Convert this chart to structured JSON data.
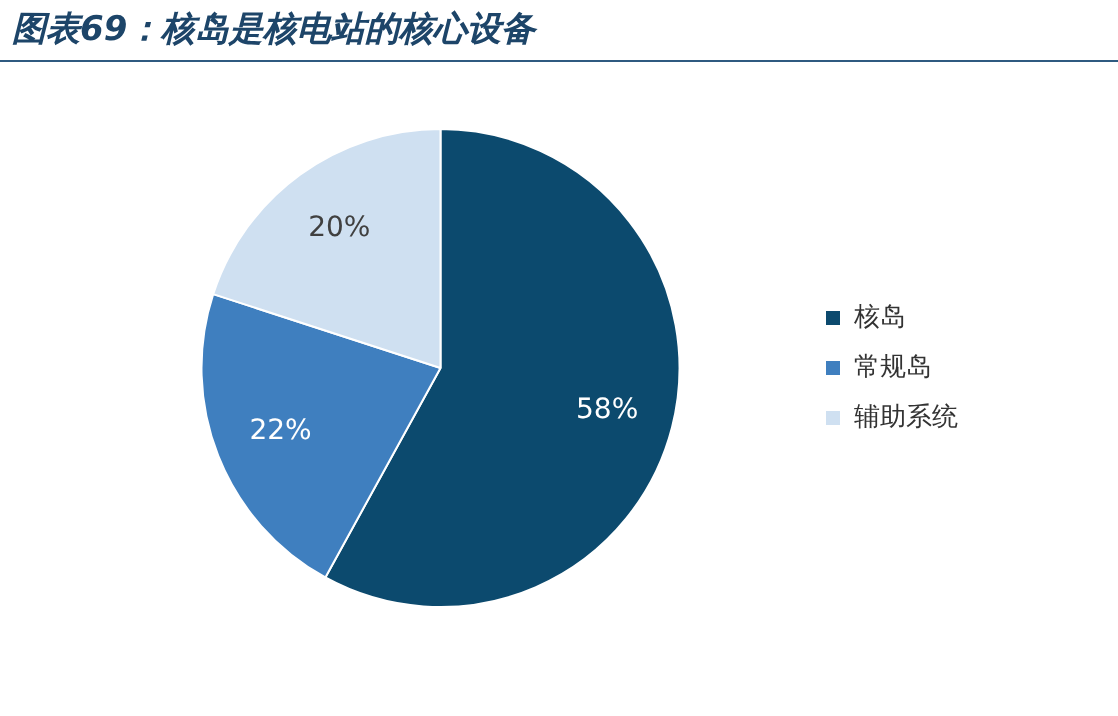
{
  "chart_data": {
    "type": "pie",
    "title": "图表69：核岛是核电站的核心设备",
    "categories": [
      "核岛",
      "常规岛",
      "辅助系统"
    ],
    "values": [
      58,
      22,
      20
    ],
    "colors": [
      "#0c4a6e",
      "#3f7fbf",
      "#cfe0f1"
    ],
    "value_labels": [
      "58%",
      "22%",
      "20%"
    ],
    "legend": "right"
  }
}
